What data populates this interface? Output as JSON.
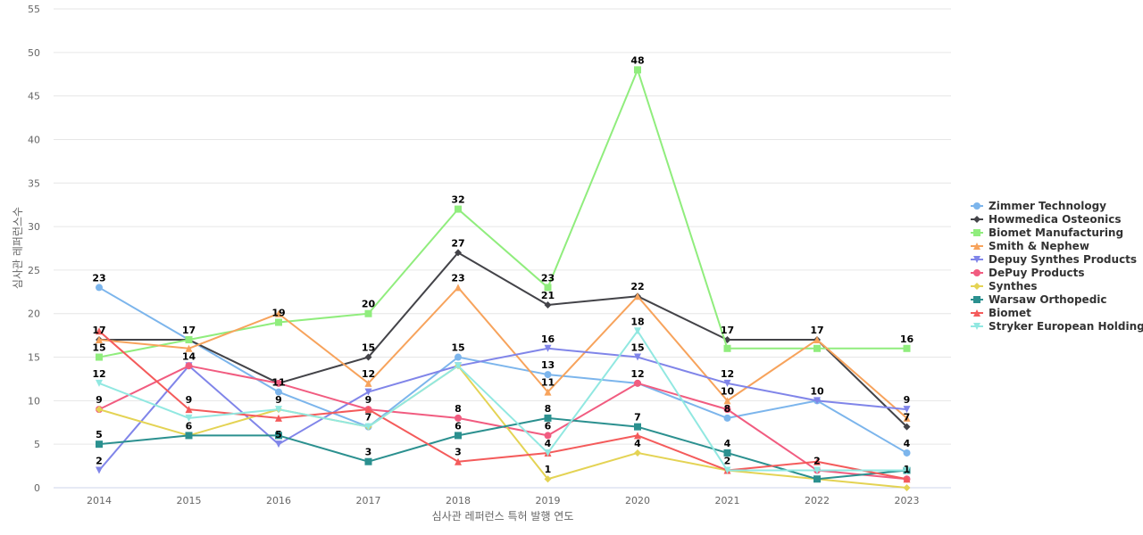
{
  "chart_data": {
    "type": "line",
    "title": "",
    "xlabel": "심사관 레퍼런스 특허 발행 연도",
    "ylabel": "심사관 레퍼런스수",
    "x": [
      "2014",
      "2015",
      "2016",
      "2017",
      "2018",
      "2019",
      "2020",
      "2021",
      "2022",
      "2023"
    ],
    "ylim": [
      0,
      55
    ],
    "yticks": [
      0,
      5,
      10,
      15,
      20,
      25,
      30,
      35,
      40,
      45,
      50,
      55
    ],
    "grid": true,
    "legend_position": "right",
    "series": [
      {
        "name": "Zimmer Technology",
        "color": "#7cb5ec",
        "marker": "circle",
        "values": [
          23,
          17,
          11,
          7,
          15,
          13,
          12,
          8,
          10,
          4
        ]
      },
      {
        "name": "Howmedica Osteonics",
        "color": "#434348",
        "marker": "diamond",
        "values": [
          17,
          17,
          12,
          15,
          27,
          21,
          22,
          17,
          17,
          7
        ]
      },
      {
        "name": "Biomet Manufacturing",
        "color": "#90ed7d",
        "marker": "square",
        "values": [
          15,
          17,
          19,
          20,
          32,
          23,
          48,
          16,
          16,
          16
        ]
      },
      {
        "name": "Smith & Nephew",
        "color": "#f7a35c",
        "marker": "triangle",
        "values": [
          17,
          16,
          20,
          12,
          23,
          11,
          22,
          10,
          17,
          8
        ]
      },
      {
        "name": "Depuy Synthes Products",
        "color": "#8085e9",
        "marker": "triangle-down",
        "values": [
          2,
          14,
          5,
          11,
          14,
          16,
          15,
          12,
          10,
          9
        ]
      },
      {
        "name": "DePuy Products",
        "color": "#f15c80",
        "marker": "circle",
        "values": [
          9,
          14,
          12,
          9,
          8,
          6,
          12,
          9,
          2,
          1
        ]
      },
      {
        "name": "Synthes",
        "color": "#e4d354",
        "marker": "diamond",
        "values": [
          9,
          6,
          9,
          7,
          14,
          1,
          4,
          2,
          1,
          0
        ]
      },
      {
        "name": "Warsaw Orthopedic",
        "color": "#2b908f",
        "marker": "square",
        "values": [
          5,
          6,
          6,
          3,
          6,
          8,
          7,
          4,
          1,
          2
        ]
      },
      {
        "name": "Biomet",
        "color": "#f45b5b",
        "marker": "triangle",
        "values": [
          18,
          9,
          8,
          9,
          3,
          4,
          6,
          2,
          3,
          1
        ]
      },
      {
        "name": "Stryker European Holdings",
        "color": "#91e8e1",
        "marker": "triangle-down",
        "values": [
          12,
          8,
          9,
          7,
          14,
          4,
          18,
          2,
          2,
          2
        ]
      }
    ],
    "data_labels": [
      {
        "x": "2014",
        "text": "23",
        "series": "Zimmer Technology"
      },
      {
        "x": "2014",
        "text": "17",
        "series": "Howmedica Osteonics"
      },
      {
        "x": "2014",
        "text": "15",
        "series": "Biomet Manufacturing"
      },
      {
        "x": "2014",
        "text": "12",
        "series": "Stryker European Holdings"
      },
      {
        "x": "2014",
        "text": "9",
        "series": "Synthes"
      },
      {
        "x": "2014",
        "text": "5",
        "series": "Warsaw Orthopedic"
      },
      {
        "x": "2014",
        "text": "2",
        "series": "Depuy Synthes Products"
      },
      {
        "x": "2015",
        "text": "17",
        "series": "Howmedica Osteonics"
      },
      {
        "x": "2015",
        "text": "14",
        "series": "DePuy Products"
      },
      {
        "x": "2015",
        "text": "9",
        "series": "Biomet"
      },
      {
        "x": "2015",
        "text": "6",
        "series": "Synthes"
      },
      {
        "x": "2016",
        "text": "19",
        "series": "Biomet Manufacturing"
      },
      {
        "x": "2016",
        "text": "11",
        "series": "Zimmer Technology"
      },
      {
        "x": "2016",
        "text": "9",
        "series": "Synthes"
      },
      {
        "x": "2016",
        "text": "5",
        "series": "Depuy Synthes Products"
      },
      {
        "x": "2017",
        "text": "20",
        "series": "Biomet Manufacturing"
      },
      {
        "x": "2017",
        "text": "15",
        "series": "Howmedica Osteonics"
      },
      {
        "x": "2017",
        "text": "12",
        "series": "Smith & Nephew"
      },
      {
        "x": "2017",
        "text": "9",
        "series": "DePuy Products"
      },
      {
        "x": "2017",
        "text": "7",
        "series": "Zimmer Technology"
      },
      {
        "x": "2017",
        "text": "3",
        "series": "Warsaw Orthopedic"
      },
      {
        "x": "2018",
        "text": "32",
        "series": "Biomet Manufacturing"
      },
      {
        "x": "2018",
        "text": "27",
        "series": "Howmedica Osteonics"
      },
      {
        "x": "2018",
        "text": "23",
        "series": "Smith & Nephew"
      },
      {
        "x": "2018",
        "text": "15",
        "series": "Zimmer Technology"
      },
      {
        "x": "2018",
        "text": "8",
        "series": "DePuy Products"
      },
      {
        "x": "2018",
        "text": "6",
        "series": "Warsaw Orthopedic"
      },
      {
        "x": "2018",
        "text": "3",
        "series": "Biomet"
      },
      {
        "x": "2019",
        "text": "23",
        "series": "Biomet Manufacturing"
      },
      {
        "x": "2019",
        "text": "21",
        "series": "Howmedica Osteonics"
      },
      {
        "x": "2019",
        "text": "16",
        "series": "Depuy Synthes Products"
      },
      {
        "x": "2019",
        "text": "13",
        "series": "Zimmer Technology"
      },
      {
        "x": "2019",
        "text": "11",
        "series": "Smith & Nephew"
      },
      {
        "x": "2019",
        "text": "8",
        "series": "Warsaw Orthopedic"
      },
      {
        "x": "2019",
        "text": "6",
        "series": "DePuy Products"
      },
      {
        "x": "2019",
        "text": "4",
        "series": "Biomet"
      },
      {
        "x": "2019",
        "text": "1",
        "series": "Synthes"
      },
      {
        "x": "2020",
        "text": "48",
        "series": "Biomet Manufacturing"
      },
      {
        "x": "2020",
        "text": "22",
        "series": "Smith & Nephew"
      },
      {
        "x": "2020",
        "text": "18",
        "series": "Stryker European Holdings"
      },
      {
        "x": "2020",
        "text": "15",
        "series": "Depuy Synthes Products"
      },
      {
        "x": "2020",
        "text": "12",
        "series": "DePuy Products"
      },
      {
        "x": "2020",
        "text": "7",
        "series": "Warsaw Orthopedic"
      },
      {
        "x": "2020",
        "text": "4",
        "series": "Synthes"
      },
      {
        "x": "2021",
        "text": "17",
        "series": "Howmedica Osteonics"
      },
      {
        "x": "2021",
        "text": "12",
        "series": "Depuy Synthes Products"
      },
      {
        "x": "2021",
        "text": "10",
        "series": "Smith & Nephew"
      },
      {
        "x": "2021",
        "text": "8",
        "series": "Zimmer Technology"
      },
      {
        "x": "2021",
        "text": "4",
        "series": "Warsaw Orthopedic"
      },
      {
        "x": "2021",
        "text": "2",
        "series": "Stryker European Holdings"
      },
      {
        "x": "2022",
        "text": "17",
        "series": "Howmedica Osteonics"
      },
      {
        "x": "2022",
        "text": "10",
        "series": "Zimmer Technology"
      },
      {
        "x": "2022",
        "text": "2",
        "series": "DePuy Products"
      },
      {
        "x": "2023",
        "text": "16",
        "series": "Biomet Manufacturing"
      },
      {
        "x": "2023",
        "text": "9",
        "series": "Depuy Synthes Products"
      },
      {
        "x": "2023",
        "text": "7",
        "series": "Howmedica Osteonics"
      },
      {
        "x": "2023",
        "text": "4",
        "series": "Zimmer Technology"
      },
      {
        "x": "2023",
        "text": "1",
        "series": "DePuy Products"
      }
    ]
  }
}
